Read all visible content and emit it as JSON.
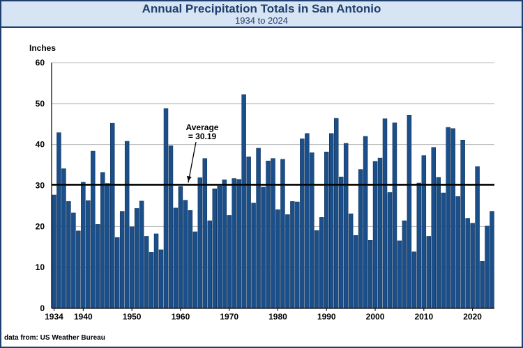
{
  "header": {
    "title": "Annual Precipitation Totals in San Antonio",
    "subtitle": "1934 to 2024"
  },
  "source": "data from:  US Weather Bureau",
  "colors": {
    "bar": "#1b4f8a",
    "bar_edge": "#0d2a4d",
    "header_bg": "#d7e4f3",
    "accent": "#1f3f6e",
    "grid": "#b5b5b5",
    "average_line": "#000000"
  },
  "chart_data": {
    "type": "bar",
    "title": "Annual Precipitation Totals in San Antonio",
    "subtitle": "1934 to 2024",
    "xlabel": "",
    "ylabel": "Inches",
    "ylim": [
      0,
      60
    ],
    "yticks": [
      0,
      10,
      20,
      30,
      40,
      50,
      60
    ],
    "xticks": [
      1934,
      1940,
      1950,
      1960,
      1970,
      1980,
      1990,
      2000,
      2010,
      2020
    ],
    "grid": true,
    "average": {
      "value": 30.19,
      "label_line1": "Average",
      "label_line2": "= 30.19"
    },
    "x": [
      1934,
      1935,
      1936,
      1937,
      1938,
      1939,
      1940,
      1941,
      1942,
      1943,
      1944,
      1945,
      1946,
      1947,
      1948,
      1949,
      1950,
      1951,
      1952,
      1953,
      1954,
      1955,
      1956,
      1957,
      1958,
      1959,
      1960,
      1961,
      1962,
      1963,
      1964,
      1965,
      1966,
      1967,
      1968,
      1969,
      1970,
      1971,
      1972,
      1973,
      1974,
      1975,
      1976,
      1977,
      1978,
      1979,
      1980,
      1981,
      1982,
      1983,
      1984,
      1985,
      1986,
      1987,
      1988,
      1989,
      1990,
      1991,
      1992,
      1993,
      1994,
      1995,
      1996,
      1997,
      1998,
      1999,
      2000,
      2001,
      2002,
      2003,
      2004,
      2005,
      2006,
      2007,
      2008,
      2009,
      2010,
      2011,
      2012,
      2013,
      2014,
      2015,
      2016,
      2017,
      2018,
      2019,
      2020,
      2021,
      2022,
      2023,
      2024
    ],
    "values": [
      27.7,
      42.9,
      34.1,
      26.1,
      23.3,
      18.9,
      30.8,
      26.3,
      38.4,
      20.5,
      33.2,
      30.5,
      45.2,
      17.3,
      23.7,
      40.8,
      19.9,
      24.4,
      26.2,
      17.6,
      13.7,
      18.2,
      14.3,
      48.8,
      39.7,
      24.5,
      29.8,
      26.4,
      23.9,
      18.7,
      31.9,
      36.6,
      21.4,
      29.2,
      29.9,
      31.4,
      22.7,
      31.7,
      31.5,
      52.2,
      37.0,
      25.7,
      39.1,
      29.6,
      36.0,
      36.6,
      24.1,
      36.4,
      22.9,
      26.1,
      26.0,
      41.4,
      42.7,
      38.0,
      19.0,
      22.2,
      38.2,
      42.7,
      46.4,
      32.1,
      40.3,
      23.1,
      17.8,
      33.9,
      42.0,
      16.6,
      35.9,
      36.7,
      46.3,
      28.3,
      45.3,
      16.5,
      21.4,
      47.2,
      13.8,
      30.6,
      37.3,
      17.6,
      39.3,
      32.0,
      28.2,
      44.2,
      43.9,
      27.3,
      41.1,
      22.0,
      20.8,
      34.6,
      11.5,
      20.1,
      23.7
    ]
  }
}
